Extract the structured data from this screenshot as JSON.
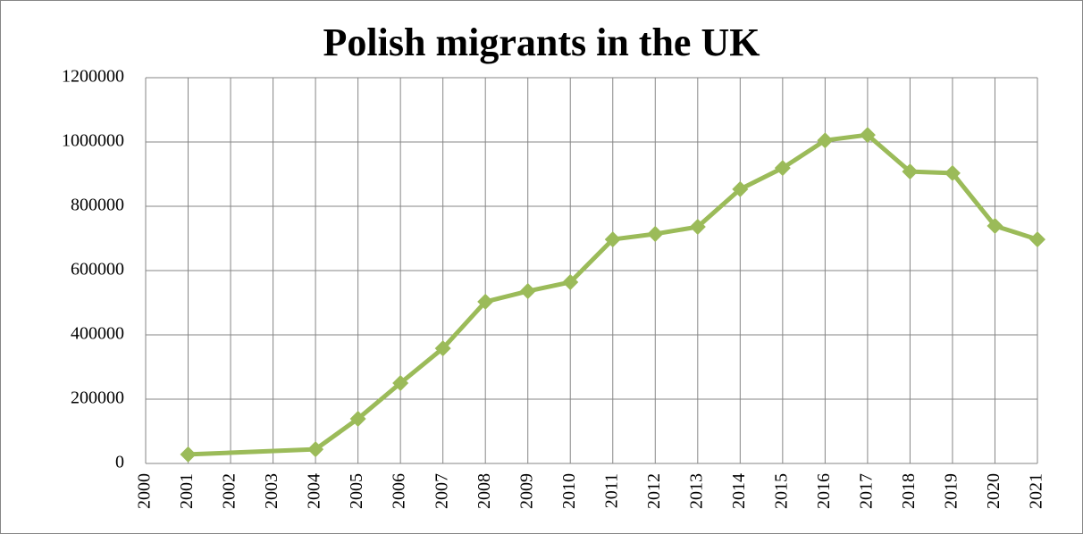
{
  "chart_data": {
    "type": "line",
    "title": "Polish migrants in the UK",
    "x": [
      2001,
      2004,
      2005,
      2006,
      2007,
      2008,
      2009,
      2010,
      2011,
      2012,
      2013,
      2014,
      2015,
      2016,
      2017,
      2018,
      2019,
      2020,
      2021
    ],
    "series": [
      {
        "name": "Polish migrants",
        "color": "#9bbb59",
        "values": [
          28000,
          44000,
          139000,
          250000,
          358000,
          503000,
          536000,
          564000,
          697000,
          714000,
          736000,
          853000,
          919000,
          1005000,
          1022000,
          908000,
          903000,
          739000,
          697000
        ]
      }
    ],
    "xlim": [
      2000,
      2021
    ],
    "xticks": [
      2000,
      2001,
      2002,
      2003,
      2004,
      2005,
      2006,
      2007,
      2008,
      2009,
      2010,
      2011,
      2012,
      2013,
      2014,
      2015,
      2016,
      2017,
      2018,
      2019,
      2020,
      2021
    ],
    "ylim": [
      0,
      1200000
    ],
    "yticks": [
      0,
      200000,
      400000,
      600000,
      800000,
      1000000,
      1200000
    ],
    "grid": true
  }
}
